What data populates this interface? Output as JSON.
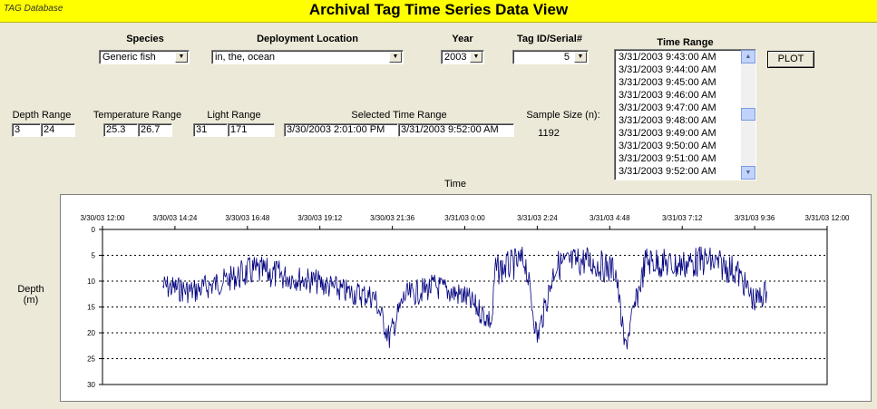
{
  "header": {
    "app_name": "TAG Database",
    "title": "Archival Tag Time Series Data View"
  },
  "filters": {
    "species_label": "Species",
    "species_value": "Generic fish",
    "location_label": "Deployment Location",
    "location_value": "in, the, ocean",
    "year_label": "Year",
    "year_value": "2003",
    "tag_label": "Tag ID/Serial#",
    "tag_value": "5"
  },
  "time_range": {
    "label": "Time Range",
    "items": [
      "3/31/2003 9:43:00 AM",
      "3/31/2003 9:44:00 AM",
      "3/31/2003 9:45:00 AM",
      "3/31/2003 9:46:00 AM",
      "3/31/2003 9:47:00 AM",
      "3/31/2003 9:48:00 AM",
      "3/31/2003 9:49:00 AM",
      "3/31/2003 9:50:00 AM",
      "3/31/2003 9:51:00 AM",
      "3/31/2003 9:52:00 AM"
    ]
  },
  "plot_button": "PLOT",
  "ranges": {
    "depth_label": "Depth Range",
    "depth_min": "3",
    "depth_max": "24",
    "temp_label": "Temperature Range",
    "temp_min": "25.3",
    "temp_max": "26.7",
    "light_label": "Light Range",
    "light_min": "31",
    "light_max": "171",
    "selected_label": "Selected Time Range",
    "selected_start": "3/30/2003 2:01:00 PM",
    "selected_end": "3/31/2003 9:52:00 AM",
    "sample_label": "Sample Size (n):",
    "sample_value": "1192"
  },
  "chart_data": {
    "type": "line",
    "title": "Time",
    "xlabel": "Time",
    "ylabel": "Depth (m)",
    "ylabel_lines": [
      "Depth",
      "(m)"
    ],
    "x_tick_labels": [
      "3/30/03 12:00",
      "3/30/03 14:24",
      "3/30/03 16:48",
      "3/30/03 19:12",
      "3/30/03 21:36",
      "3/31/03 0:00",
      "3/31/03 2:24",
      "3/31/03 4:48",
      "3/31/03 7:12",
      "3/31/03 9:36",
      "3/31/03 12:00"
    ],
    "y_ticks": [
      0,
      5,
      10,
      15,
      20,
      25,
      30
    ],
    "ylim": [
      0,
      30
    ],
    "y_reversed": true,
    "grid": "horizontal-dotted",
    "color": "#00007f",
    "series": [
      {
        "x_hours": [
          14.0,
          15.0,
          16.0,
          17.0,
          18.0,
          19.0,
          20.0,
          21.0,
          21.5,
          22.0,
          23.0,
          24.0,
          24.9,
          25.0,
          26.0,
          26.4,
          27.0,
          28.0,
          29.0,
          29.3,
          30.0,
          31.0,
          32.0,
          33.0,
          33.6,
          34.0
        ],
        "depth": [
          11,
          12,
          10,
          8,
          9,
          10,
          12,
          13,
          21,
          13,
          11,
          13,
          18,
          8,
          6,
          21,
          7,
          6,
          8,
          23,
          6,
          7,
          6,
          8,
          14,
          12
        ]
      }
    ]
  }
}
